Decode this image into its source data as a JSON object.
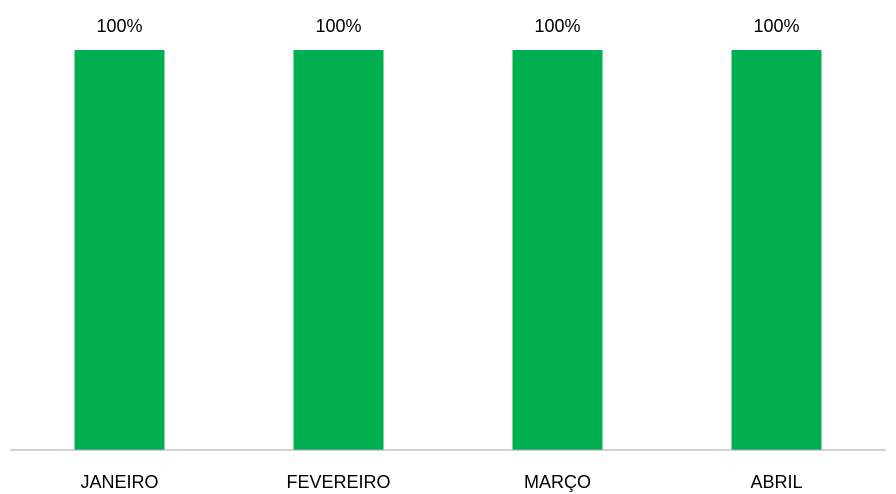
{
  "chart_data": {
    "type": "bar",
    "categories": [
      "JANEIRO",
      "FEVEREIRO",
      "MARÇO",
      "ABRIL"
    ],
    "values": [
      100,
      100,
      100,
      100
    ],
    "data_labels": [
      "100%",
      "100%",
      "100%",
      "100%"
    ],
    "ylim": [
      0,
      100
    ],
    "bar_color": "#00B050",
    "axis_color": "#A6A6A6",
    "grid": false,
    "legend": "none"
  }
}
